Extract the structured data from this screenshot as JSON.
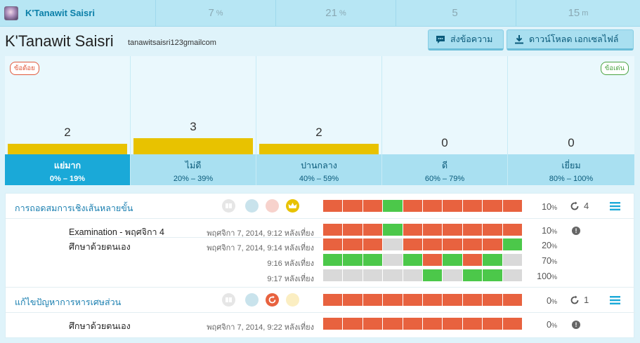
{
  "topbar": {
    "username": "K'Tanawit Saisri",
    "stats": [
      {
        "value": "7",
        "unit": "%"
      },
      {
        "value": "21",
        "unit": "%"
      },
      {
        "value": "5",
        "unit": ""
      },
      {
        "value": "15",
        "unit": "m"
      }
    ]
  },
  "header": {
    "title": "K'Tanawit Saisri",
    "email": "tanawitsaisri123gmailcom",
    "send_message": "ส่งข้อความ",
    "download": "ดาวน์โหลด เอกเซลไฟล์"
  },
  "levels": {
    "weak_tag": "ข้อด้อย",
    "strong_tag": "ข้อเด่น",
    "items": [
      {
        "count": "2",
        "name": "แย่มาก",
        "range": "0% – 19%",
        "level": 2
      },
      {
        "count": "3",
        "name": "ไม่ดี",
        "range": "20% – 39%",
        "level": 3
      },
      {
        "count": "2",
        "name": "ปานกลาง",
        "range": "40% – 59%",
        "level": 2
      },
      {
        "count": "0",
        "name": "ดี",
        "range": "60% – 79%",
        "level": 0
      },
      {
        "count": "0",
        "name": "เยี่ยม",
        "range": "80% – 100%",
        "level": 0
      }
    ]
  },
  "colors": {
    "red": "#e8623f",
    "green": "#4cc84a",
    "gray": "#d9d9d9",
    "yellow": "#e8c200",
    "selected": "#1aa9d8"
  },
  "topics": [
    {
      "title": "การถอดสมการเชิงเส้นหลายขั้น",
      "percent": "10",
      "retries": "4",
      "attempts": [
        {
          "name": "Examination - พฤศจิกา 4",
          "date": "พฤศจิกา 7, 2014, 9:12 หลังเที่ยง",
          "percent": "10",
          "segments": [
            "r",
            "r",
            "r",
            "g",
            "r",
            "r",
            "r",
            "r",
            "r",
            "r"
          ]
        },
        {
          "name": "ศึกษาด้วยตนเอง",
          "date": "พฤศจิกา 7, 2014, 9:14 หลังเที่ยง",
          "percent": "20",
          "segments": [
            "r",
            "r",
            "r",
            "x",
            "r",
            "r",
            "r",
            "r",
            "r",
            "g"
          ]
        },
        {
          "name": "",
          "date": "9:16 หลังเที่ยง",
          "percent": "70",
          "segments": [
            "g",
            "g",
            "g",
            "x",
            "g",
            "r",
            "g",
            "r",
            "g",
            "x"
          ]
        },
        {
          "name": "",
          "date": "9:17 หลังเที่ยง",
          "percent": "100",
          "segments": [
            "x",
            "x",
            "x",
            "x",
            "x",
            "g",
            "x",
            "g",
            "g",
            "x"
          ]
        }
      ]
    },
    {
      "title": "แก้ไขปัญหาการหารเศษส่วน",
      "percent": "0",
      "retries": "1",
      "attempts": [
        {
          "name": "ศึกษาด้วยตนเอง",
          "date": "พฤศจิกา 7, 2014, 9:22 หลังเที่ยง",
          "percent": "0",
          "segments": [
            "r",
            "r",
            "r",
            "r",
            "r",
            "r",
            "r",
            "r",
            "r",
            "r"
          ]
        }
      ]
    }
  ],
  "summary_segments": [
    [
      "r",
      "r",
      "r",
      "g",
      "r",
      "r",
      "r",
      "r",
      "r",
      "r"
    ],
    [
      "r",
      "r",
      "r",
      "r",
      "r",
      "r",
      "r",
      "r",
      "r",
      "r"
    ]
  ],
  "percent_unit": "%"
}
